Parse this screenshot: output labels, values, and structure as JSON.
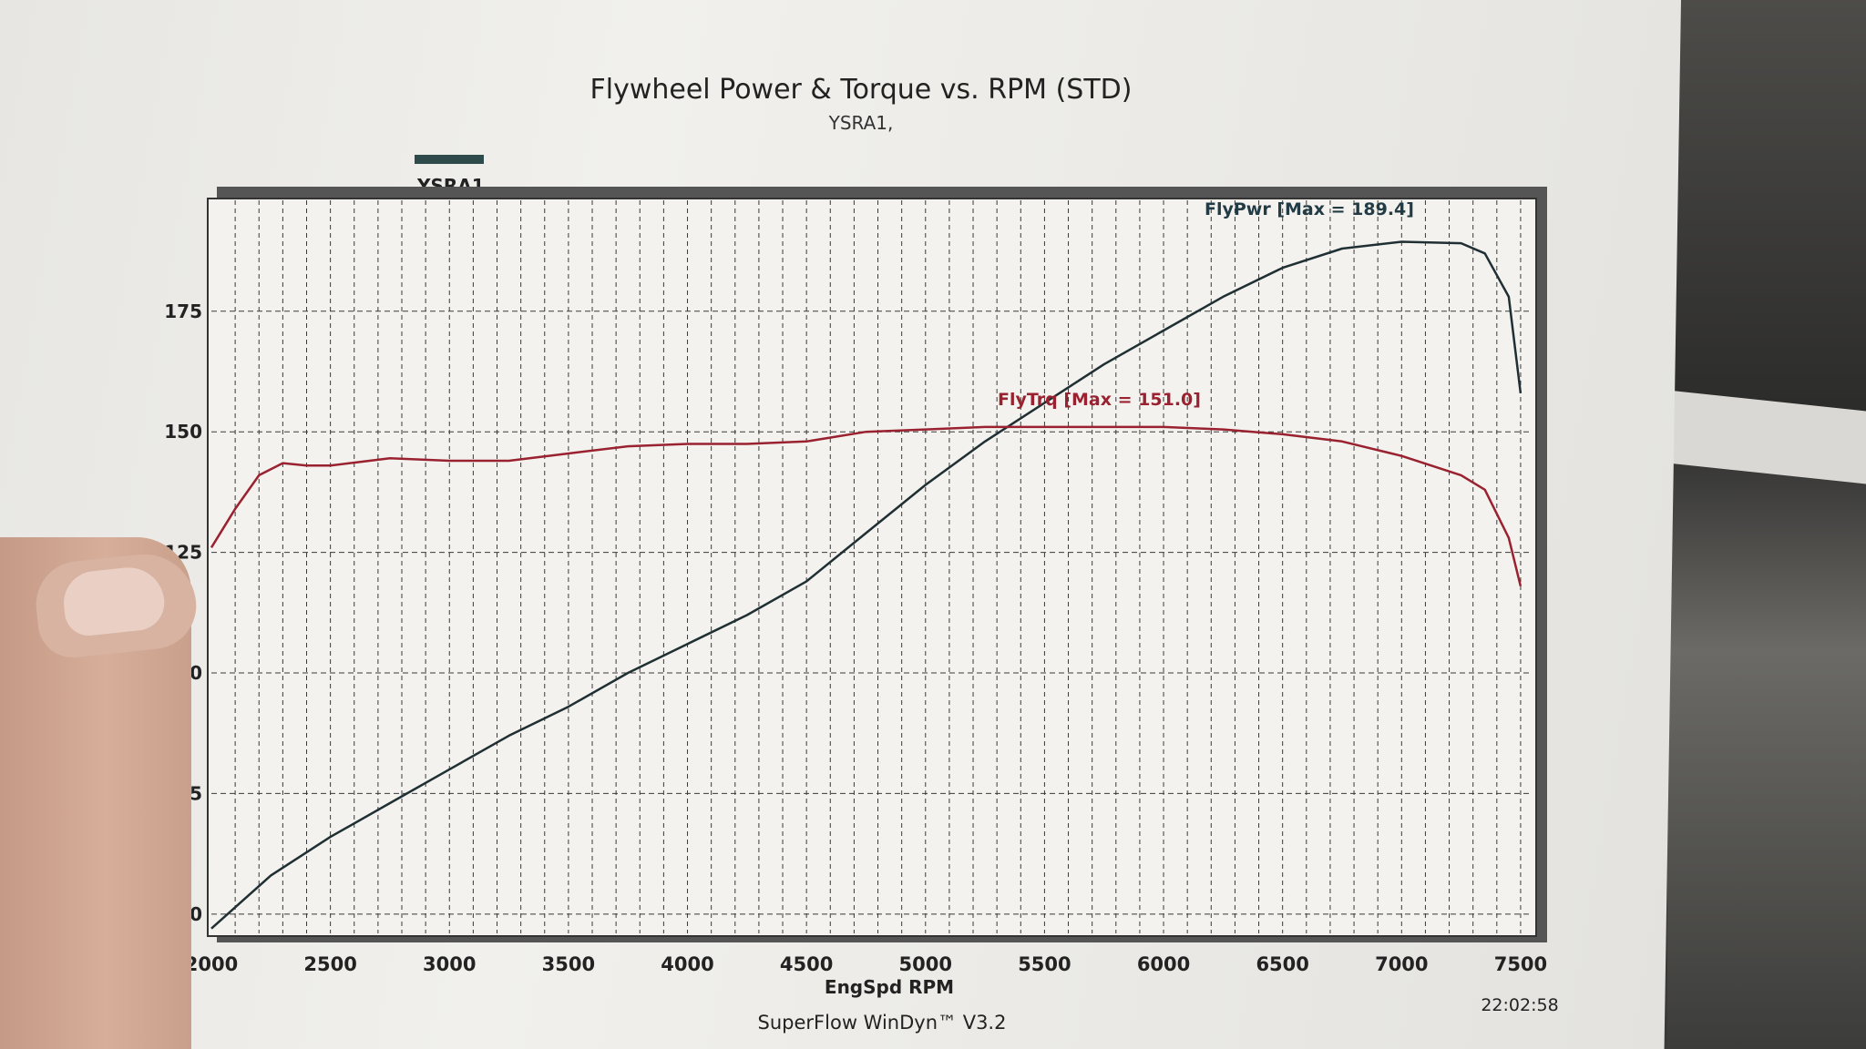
{
  "chart_data": {
    "type": "line",
    "title": "Flywheel Power & Torque vs. RPM (STD)",
    "subtitle": "YSRA1,",
    "legend": {
      "entries": [
        "YSRA1"
      ],
      "position": "top-left",
      "color": "#2f4a4a"
    },
    "xlabel": "EngSpd RPM",
    "ylabel": "",
    "xlim": [
      2000,
      7550
    ],
    "ylim": [
      46,
      198
    ],
    "x_ticks": [
      2000,
      2500,
      3000,
      3500,
      4000,
      4500,
      5000,
      5500,
      6000,
      6500,
      7000,
      7500
    ],
    "y_ticks": [
      50,
      75,
      100,
      125,
      150,
      175
    ],
    "grid": true,
    "series": [
      {
        "name": "FlyPwr",
        "color": "#1f2f33",
        "annotation": "FlyPwr [Max = 189.4]",
        "x": [
          2000,
          2250,
          2500,
          2750,
          3000,
          3250,
          3500,
          3750,
          4000,
          4250,
          4500,
          4750,
          5000,
          5250,
          5500,
          5750,
          6000,
          6250,
          6500,
          6750,
          7000,
          7250,
          7350,
          7450,
          7500
        ],
        "y": [
          47,
          58,
          66,
          73,
          80,
          87,
          93,
          100,
          106,
          112,
          119,
          129,
          139,
          148,
          156,
          164,
          171,
          178,
          184,
          188,
          189.4,
          189.1,
          187,
          178,
          158
        ]
      },
      {
        "name": "FlyTrq",
        "color": "#9a2230",
        "annotation": "FlyTrq [Max = 151.0]",
        "x": [
          2000,
          2100,
          2200,
          2300,
          2400,
          2500,
          2750,
          3000,
          3250,
          3500,
          3750,
          4000,
          4250,
          4500,
          4750,
          5000,
          5250,
          5500,
          5750,
          6000,
          6250,
          6500,
          6750,
          7000,
          7250,
          7350,
          7450,
          7500
        ],
        "y": [
          126,
          134,
          141,
          143.5,
          143,
          143,
          144.5,
          144,
          144,
          145.5,
          147,
          147.5,
          147.5,
          148,
          150,
          150.5,
          151,
          151,
          151,
          151,
          150.5,
          149.5,
          148,
          145,
          141,
          138,
          128,
          118
        ]
      }
    ]
  },
  "footer": {
    "software": "SuperFlow WinDyn™ V3.2",
    "time": "22:02:58"
  }
}
